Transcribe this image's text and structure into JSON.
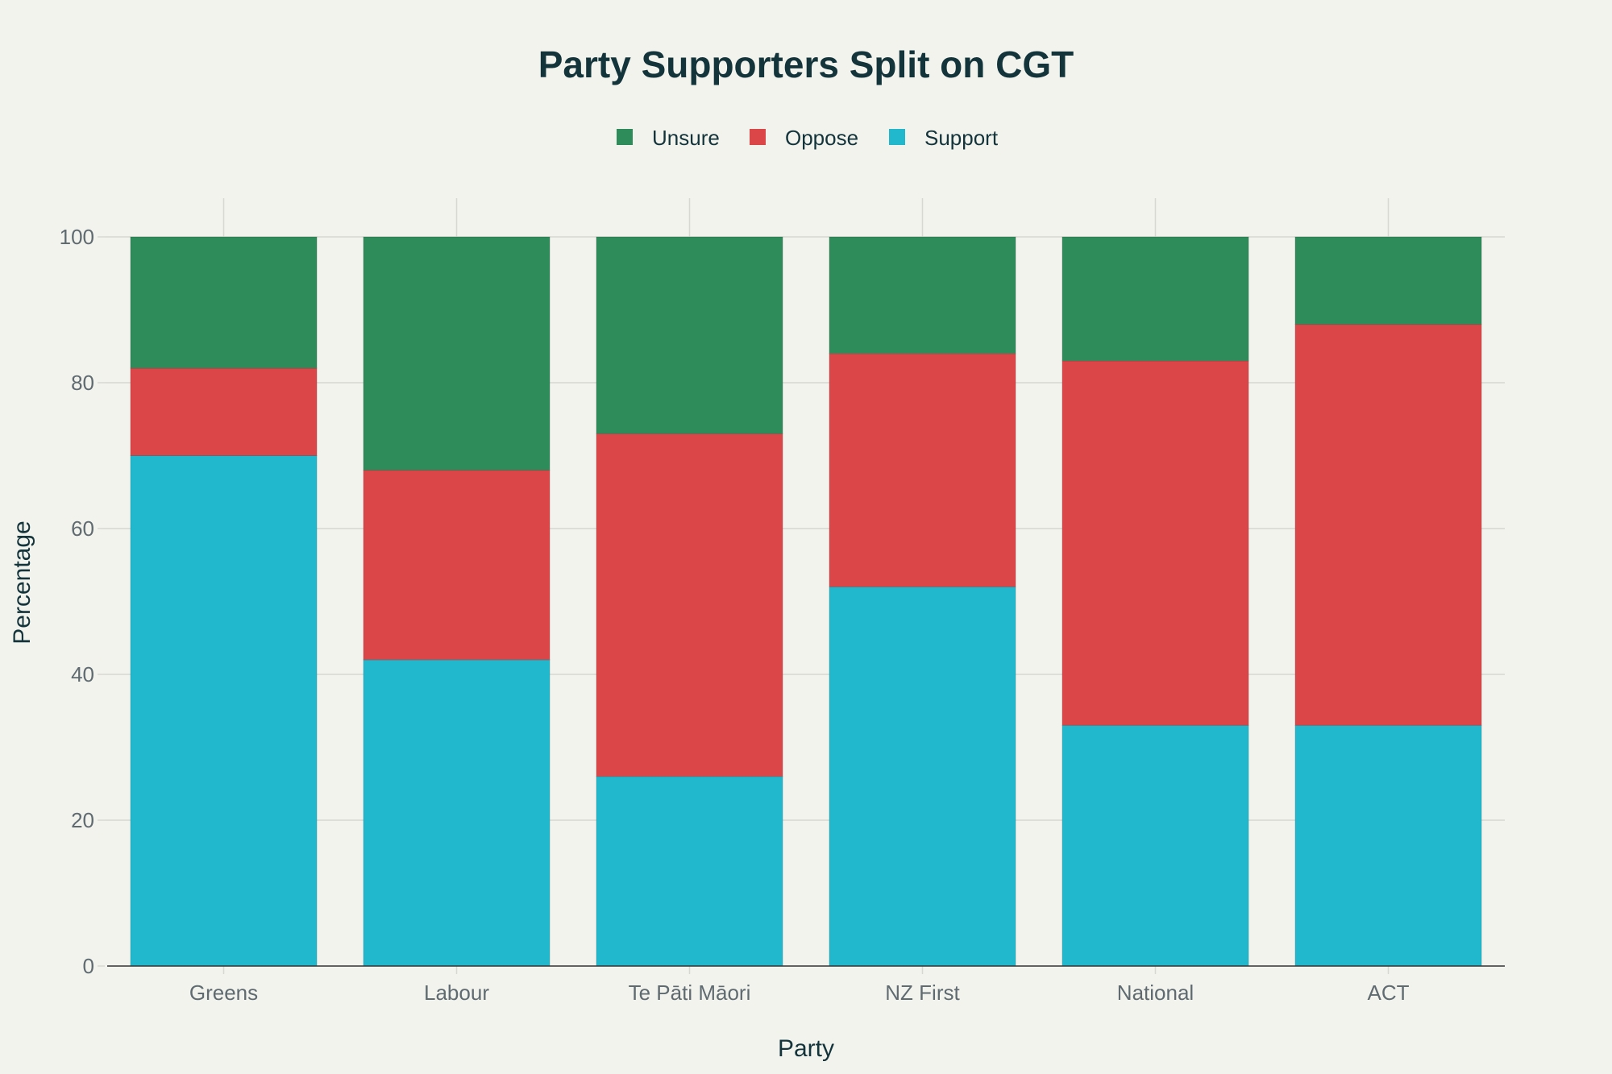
{
  "chart_data": {
    "type": "bar",
    "stacked": true,
    "title": "Party Supporters Split on CGT",
    "xlabel": "Party",
    "ylabel": "Percentage",
    "ylim": [
      0,
      100
    ],
    "yticks": [
      0,
      20,
      40,
      60,
      80,
      100
    ],
    "grid": true,
    "legend_position": "top-center",
    "categories": [
      "Greens",
      "Labour",
      "Te Pāti Māori",
      "NZ First",
      "National",
      "ACT"
    ],
    "series": [
      {
        "name": "Support",
        "color": "#21b8cd",
        "values": [
          70,
          42,
          26,
          52,
          33,
          33
        ]
      },
      {
        "name": "Oppose",
        "color": "#db4648",
        "values": [
          12,
          26,
          47,
          32,
          50,
          55
        ]
      },
      {
        "name": "Unsure",
        "color": "#2e8b5a",
        "values": [
          18,
          32,
          27,
          16,
          17,
          12
        ]
      }
    ],
    "legend_order": [
      "Unsure",
      "Oppose",
      "Support"
    ]
  }
}
